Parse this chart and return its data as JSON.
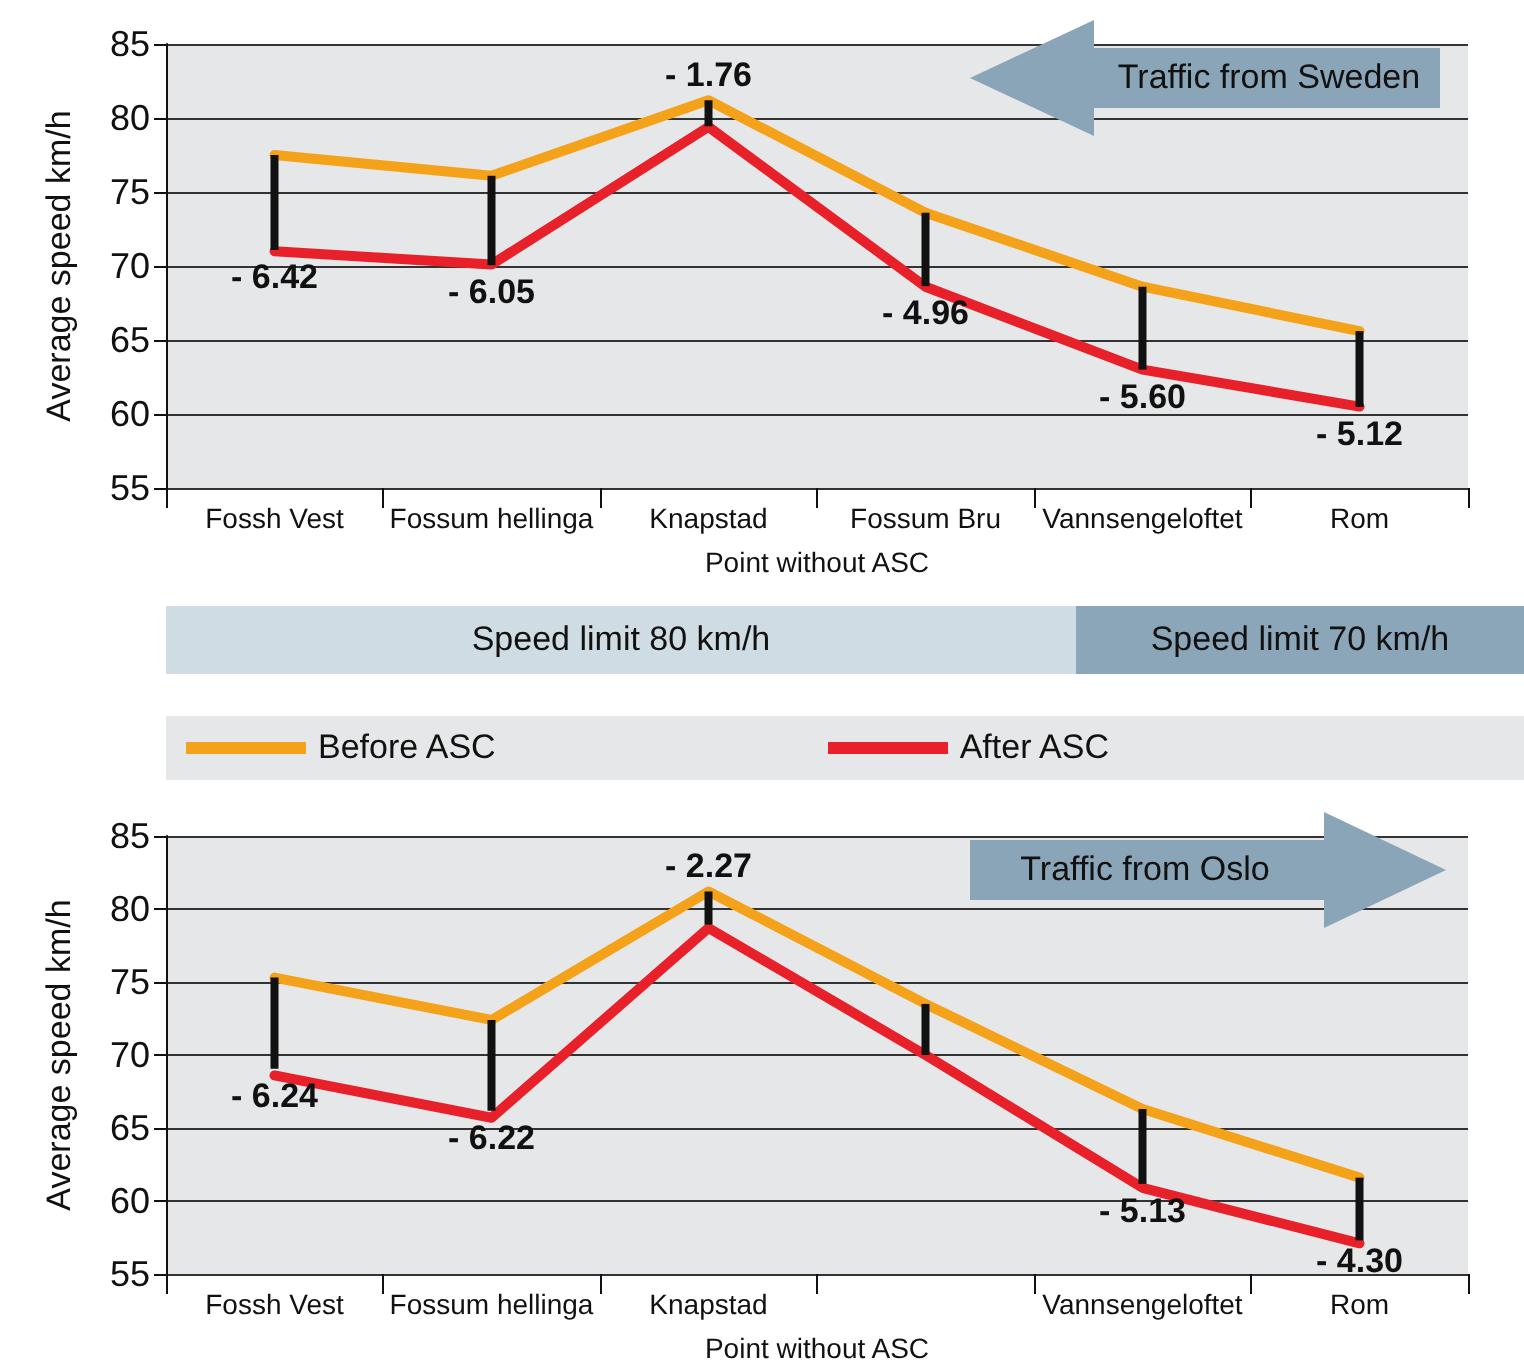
{
  "chart_data": [
    {
      "type": "line",
      "categories": [
        "Fossh Vest",
        "Fossum hellinga",
        "Knapstad",
        "Fossum Bru",
        "Vannsengeloftet",
        "Rom"
      ],
      "xlabel": "Point without ASC",
      "ylabel": "Average speed km/h",
      "ylim": [
        55,
        85
      ],
      "yticks": [
        55,
        60,
        65,
        70,
        75,
        80,
        85
      ],
      "grid": "y",
      "marker": "none",
      "line_style": "solid",
      "legend": false,
      "series": [
        {
          "color": "#f5a21b",
          "values": [
            77.5,
            76.1,
            81.2,
            73.6,
            68.6,
            65.6
          ]
        },
        {
          "color": "#e8202a",
          "values": [
            71.0,
            70.1,
            79.4,
            68.6,
            63.0,
            60.5
          ]
        },
        {
          "type": "bar",
          "color": "#111111",
          "base": [
            77.5,
            76.1,
            81.2,
            73.6,
            68.6,
            65.6
          ],
          "values": [
            -6.42,
            -6.05,
            -1.76,
            -4.96,
            -5.6,
            -5.12
          ],
          "value_labels": [
            "- 6.42",
            "- 6.05",
            "- 1.76",
            "- 4.96",
            "- 5.60",
            "- 5.12"
          ]
        }
      ],
      "annotations": [
        "Traffic from Sweden",
        "Speed limit 80 km/h",
        "Speed limit 70 km/h"
      ]
    },
    {
      "type": "line",
      "categories": [
        "Fossh Vest",
        "Fossum hellinga",
        "Knapstad",
        null,
        "Vannsengeloftet",
        "Rom"
      ],
      "xlabel": "Point without ASC",
      "ylabel": "Average speed km/h",
      "ylim": [
        55,
        85
      ],
      "yticks": [
        55,
        60,
        65,
        70,
        75,
        80,
        85
      ],
      "grid": "y",
      "marker": "none",
      "line_style": "solid",
      "legend": "top",
      "series": [
        {
          "name": "Before ASC",
          "color": "#f5a21b",
          "values": [
            75.3,
            72.4,
            81.2,
            73.5,
            66.3,
            61.6
          ]
        },
        {
          "name": "After ASC",
          "color": "#e8202a",
          "values": [
            68.6,
            65.7,
            78.7,
            70.0,
            60.9,
            57.1
          ]
        },
        {
          "type": "bar",
          "color": "#111111",
          "base": [
            75.3,
            72.4,
            81.2,
            73.5,
            66.3,
            61.6
          ],
          "values": [
            -6.24,
            -6.22,
            -2.27,
            -3.5,
            -5.13,
            -4.3
          ],
          "value_labels": [
            "- 6.24",
            "- 6.22",
            "- 2.27",
            null,
            "- 5.13",
            "- 4.30"
          ]
        }
      ],
      "annotations": [
        "Traffic from Oslo"
      ]
    }
  ]
}
